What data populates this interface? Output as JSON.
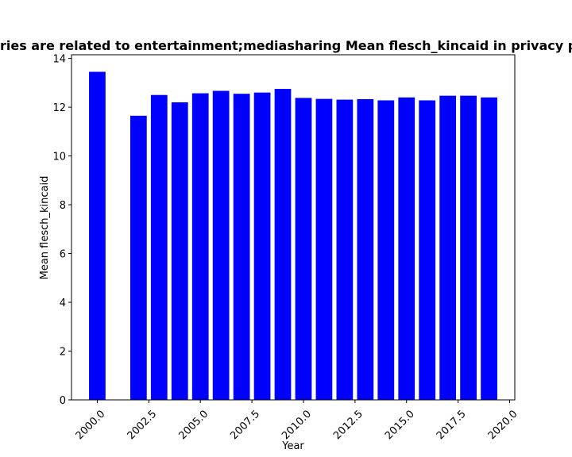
{
  "chart_data": {
    "type": "bar",
    "title": "Categories are related to entertainment;mediasharing Mean flesch_kincaid in privacy policies",
    "xlabel": "Year",
    "ylabel": "Mean flesch_kincaid",
    "bar_color": "#0000ff",
    "x": [
      2000,
      2002,
      2003,
      2004,
      2005,
      2006,
      2007,
      2008,
      2009,
      2010,
      2011,
      2012,
      2013,
      2014,
      2015,
      2016,
      2017,
      2018,
      2019
    ],
    "values": [
      13.45,
      11.65,
      12.5,
      12.2,
      12.57,
      12.67,
      12.55,
      12.6,
      12.75,
      12.38,
      12.34,
      12.31,
      12.33,
      12.28,
      12.4,
      12.28,
      12.47,
      12.47,
      12.4
    ],
    "xlim": [
      1998.75,
      2020.25
    ],
    "ylim": [
      0,
      14.15
    ],
    "xticks": [
      "2000.0",
      "2002.5",
      "2005.0",
      "2007.5",
      "2010.0",
      "2012.5",
      "2015.0",
      "2017.5",
      "2020.0"
    ],
    "xtick_values": [
      2000,
      2002.5,
      2005,
      2007.5,
      2010,
      2012.5,
      2015,
      2017.5,
      2020
    ],
    "yticks": [
      "0",
      "2",
      "4",
      "6",
      "8",
      "10",
      "12",
      "14"
    ],
    "ytick_values": [
      0,
      2,
      4,
      6,
      8,
      10,
      12,
      14
    ],
    "grid": false,
    "legend": "none"
  }
}
